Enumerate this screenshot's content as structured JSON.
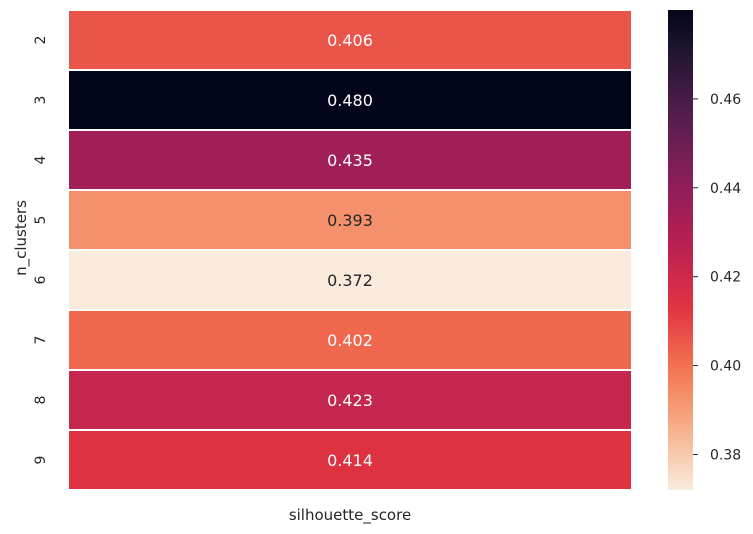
{
  "chart_data": {
    "type": "heatmap",
    "title": "",
    "xlabel": "silhouette_score",
    "ylabel": "n_clusters",
    "columns": [],
    "rows": [
      "2",
      "3",
      "4",
      "5",
      "6",
      "7",
      "8",
      "9"
    ],
    "values": [
      0.406,
      0.48,
      0.435,
      0.393,
      0.372,
      0.402,
      0.423,
      0.414
    ],
    "value_labels": [
      "0.406",
      "0.480",
      "0.435",
      "0.393",
      "0.372",
      "0.402",
      "0.423",
      "0.414"
    ],
    "colorbar": {
      "range": [
        0.372,
        0.48
      ],
      "ticks": [
        0.38,
        0.4,
        0.42,
        0.44,
        0.46
      ],
      "tick_labels": [
        "0.38",
        "0.40",
        "0.42",
        "0.44",
        "0.46"
      ],
      "colormap": "rocket_r"
    },
    "grid": false,
    "legend": "colorbar-right"
  }
}
